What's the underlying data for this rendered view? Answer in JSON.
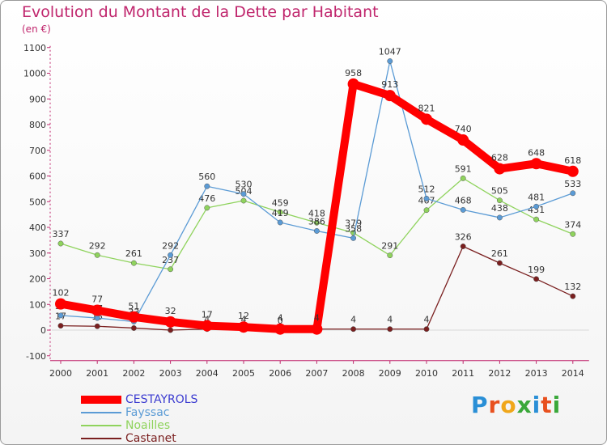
{
  "title": "Evolution du Montant de la Dette par Habitant",
  "unit": "(en €)",
  "logo": {
    "text": "Proxiti",
    "letter_colors": [
      "#2a8fd6",
      "#e8501e",
      "#f0a71a",
      "#3aa83a",
      "#2a8fd6",
      "#e8501e",
      "#3aa83a"
    ]
  },
  "chart_data": {
    "type": "line",
    "categories": [
      "2000",
      "2001",
      "2002",
      "2003",
      "2004",
      "2005",
      "2006",
      "2007",
      "2008",
      "2009",
      "2010",
      "2011",
      "2012",
      "2013",
      "2014"
    ],
    "ylim": [
      -100,
      1100
    ],
    "yticks": [
      -100,
      0,
      100,
      200,
      300,
      400,
      500,
      600,
      700,
      800,
      900,
      1000,
      1100
    ],
    "grid": false,
    "legend_position": "bottom-left",
    "series": [
      {
        "name": "CESTAYROLS",
        "color": "#ff0000",
        "label_color": "#3b3bd0",
        "values": [
          102,
          77,
          51,
          32,
          17,
          12,
          4,
          4,
          958,
          913,
          821,
          740,
          628,
          648,
          618
        ],
        "point_labels": [
          "102",
          "77",
          "51",
          "32",
          "17",
          "12",
          "4",
          "4",
          "958",
          "913",
          "821",
          "740",
          "628",
          "648",
          "618"
        ]
      },
      {
        "name": "Fayssac",
        "color": "#5b9bd5",
        "values": [
          57,
          47,
          33,
          292,
          560,
          530,
          419,
          386,
          358,
          1047,
          512,
          468,
          438,
          481,
          533
        ],
        "point_labels": [
          "57",
          "47",
          "33",
          "292",
          "560",
          "530",
          "419",
          "386",
          "358",
          "1047",
          "512",
          "468",
          "438",
          "481",
          "533"
        ]
      },
      {
        "name": "Noailles",
        "color": "#8fd35d",
        "values": [
          337,
          292,
          261,
          237,
          476,
          504,
          459,
          418,
          379,
          291,
          467,
          591,
          505,
          431,
          374
        ],
        "point_labels": [
          "337",
          "292",
          "261",
          "237",
          "476",
          "504",
          "459",
          "418",
          "379",
          "291",
          "467",
          "591",
          "505",
          "431",
          "374"
        ]
      },
      {
        "name": "Castanet",
        "color": "#7a1f1f",
        "values": [
          17,
          15,
          8,
          0,
          4,
          4,
          0,
          4,
          4,
          4,
          4,
          326,
          261,
          199,
          132
        ],
        "point_labels": [
          "17",
          "15",
          "8",
          "0",
          "4",
          "4",
          "0",
          "4",
          "4",
          "4",
          "4",
          "326",
          "261",
          "199",
          "132"
        ]
      }
    ]
  }
}
